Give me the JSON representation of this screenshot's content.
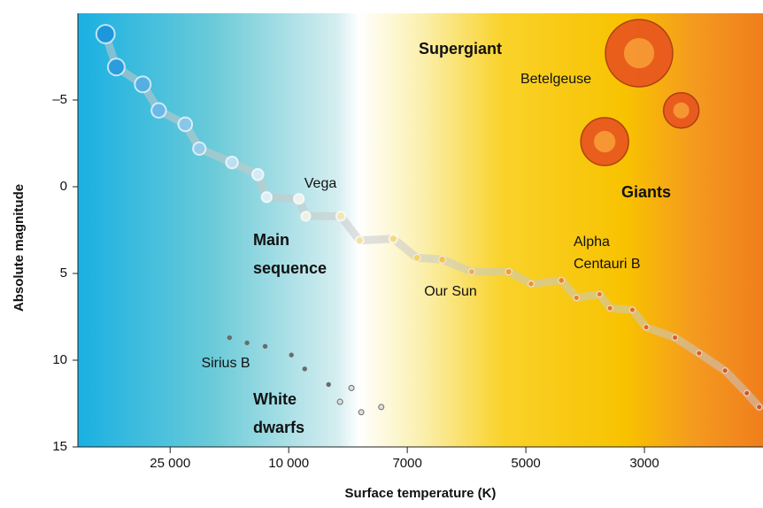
{
  "chart_data": {
    "type": "scatter",
    "xlabel": "Surface temperature (K)",
    "ylabel": "Absolute magnitude",
    "xlim": [
      51000,
      1800
    ],
    "ylim": [
      -10,
      15
    ],
    "y_inverted": true,
    "xticks": [
      {
        "value": 25000,
        "label": "25 000"
      },
      {
        "value": 10000,
        "label": "10 000"
      },
      7000,
      5000,
      3000
    ],
    "yticks": [
      {
        "value": -5,
        "label": "–5"
      },
      0,
      5,
      10,
      15
    ],
    "main_sequence": {
      "x": [
        41200,
        37900,
        30900,
        27300,
        22250,
        19950,
        15500,
        12700,
        11860,
        9700,
        9500,
        8550,
        8080,
        7300,
        6810,
        6340,
        5830,
        5250,
        4890,
        4290,
        4020,
        3640,
        3480,
        3160,
        2977,
        2630,
        2370,
        2120,
        1930,
        1830
      ],
      "y": [
        -8.8,
        -6.9,
        -5.9,
        -4.4,
        -3.6,
        -2.2,
        -1.4,
        -0.7,
        0.6,
        0.7,
        1.7,
        1.7,
        3.1,
        3.0,
        4.1,
        4.2,
        4.9,
        4.9,
        5.6,
        5.4,
        6.4,
        6.2,
        7.0,
        7.1,
        8.1,
        8.7,
        9.6,
        10.6,
        11.9,
        12.7
      ]
    },
    "giants": {
      "x": [
        3070,
        2560,
        3560
      ],
      "y": [
        -7.7,
        -4.4,
        -2.6
      ],
      "color": "#e8561e"
    },
    "white_dwarfs": {
      "x": [
        15800,
        13800,
        12000,
        9920,
        9530,
        8870,
        8280,
        8570,
        8040,
        7570
      ],
      "y": [
        8.7,
        9.0,
        9.2,
        9.7,
        10.5,
        11.4,
        11.6,
        12.4,
        13.0,
        12.7
      ],
      "color": "#6b6b6b"
    },
    "annotations": [
      "Supergiant",
      "Betelgeuse",
      "Giants",
      "Vega",
      [
        "Main",
        "sequence"
      ],
      "Our Sun",
      [
        "Alpha",
        "Centauri B"
      ],
      "Sirius B",
      [
        "White",
        "dwarfs"
      ]
    ]
  }
}
